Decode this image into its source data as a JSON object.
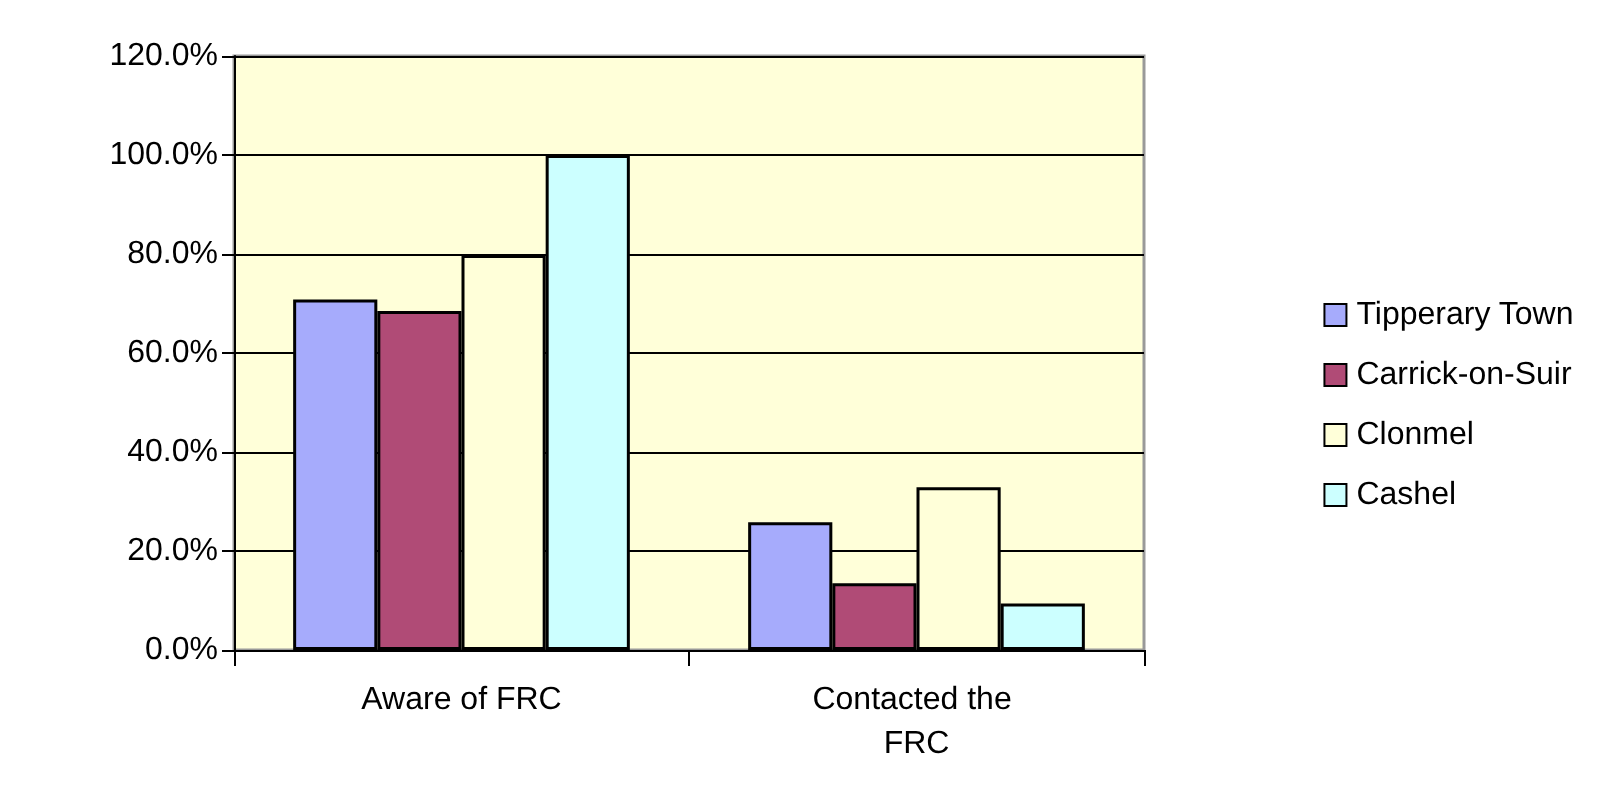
{
  "chart_data": {
    "type": "bar",
    "categories": [
      "Aware of FRC",
      "Contacted the FRC"
    ],
    "series": [
      {
        "name": "Tipperary Town",
        "color": "#a6abfc",
        "values": [
          70.8,
          25.8
        ]
      },
      {
        "name": "Carrick-on-Suir",
        "color": "#b04b76",
        "values": [
          68.5,
          13.5
        ]
      },
      {
        "name": "Clonmel",
        "color": "#ffffd9",
        "values": [
          79.8,
          32.9
        ]
      },
      {
        "name": "Cashel",
        "color": "#ccffff",
        "values": [
          100,
          9.4
        ]
      }
    ],
    "ylim": [
      0,
      120
    ],
    "yticks": [
      {
        "value": 0,
        "label": "0.0%"
      },
      {
        "value": 20,
        "label": "20.0%"
      },
      {
        "value": 40,
        "label": "40.0%"
      },
      {
        "value": 60,
        "label": "60.0%"
      },
      {
        "value": 80,
        "label": "80.0%"
      },
      {
        "value": 100,
        "label": "100.0%"
      },
      {
        "value": 120,
        "label": "120.0%"
      }
    ],
    "grid": "y",
    "legend": "right"
  }
}
